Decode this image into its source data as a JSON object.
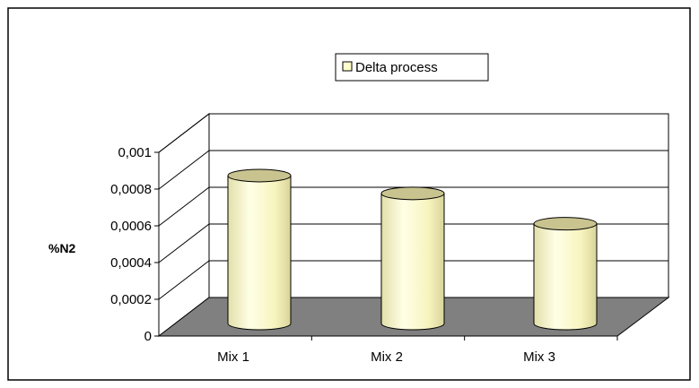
{
  "chart_data": {
    "type": "bar",
    "style": "3d-cylinder",
    "title": "",
    "xlabel": "",
    "ylabel": "%N2",
    "categories": [
      "Mix 1",
      "Mix 2",
      "Mix 3"
    ],
    "series": [
      {
        "name": "Delta process",
        "values": [
          0.00083,
          0.00073,
          0.00056
        ]
      }
    ],
    "ylim": [
      0,
      0.001
    ],
    "yticks": [
      "0",
      "0,0002",
      "0,0004",
      "0,0006",
      "0,0008",
      "0,001"
    ],
    "grid": true,
    "legend_position": "top-center",
    "colors": {
      "bar_fill": "#FFFFCC",
      "bar_top": "#C9C38F",
      "floor": "#808080",
      "wall": "#FFFFFF"
    }
  }
}
